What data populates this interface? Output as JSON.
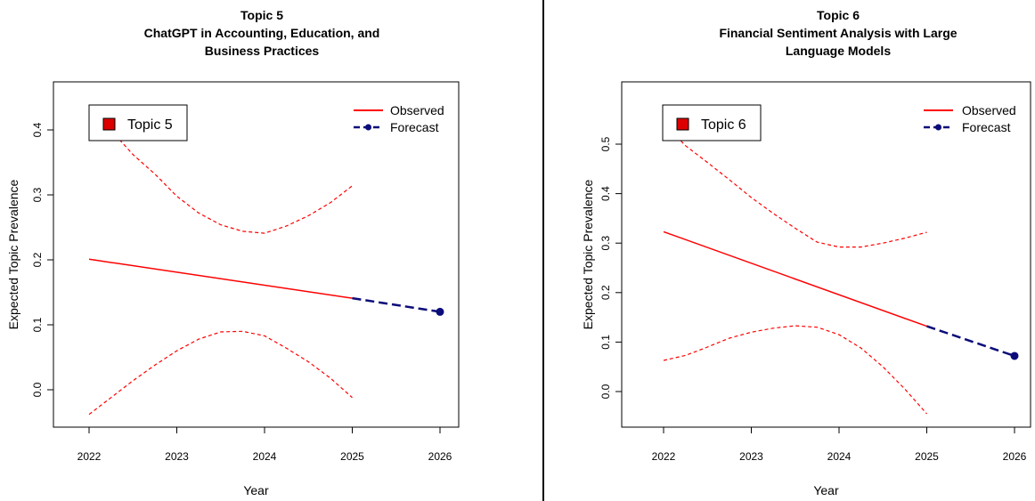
{
  "chart_data": [
    {
      "type": "line",
      "title": [
        "Topic 5",
        "ChatGPT in Accounting, Education, and",
        "Business Practices"
      ],
      "xlabel": "Year",
      "ylabel": "Expected Topic Prevalence",
      "xlim": [
        2022,
        2026
      ],
      "ylim": [
        -0.05,
        0.45
      ],
      "x_ticks": [
        2022,
        2023,
        2024,
        2025,
        2026
      ],
      "y_ticks": [
        0.0,
        0.1,
        0.2,
        0.3,
        0.4
      ],
      "grid": false,
      "box_label": "Topic 5",
      "box_color": "#dd0000",
      "legend": {
        "position": "top-right",
        "entries": [
          "Observed",
          "Forecast"
        ]
      },
      "series": [
        {
          "name": "Observed",
          "color": "#ff0000",
          "style": "solid",
          "x": [
            2022,
            2025
          ],
          "y": [
            0.201,
            0.141
          ]
        },
        {
          "name": "Upper bound",
          "color": "#ff0000",
          "style": "dashed",
          "x": [
            2022.3,
            2022.5,
            2022.75,
            2023,
            2023.25,
            2023.5,
            2023.75,
            2024,
            2024.25,
            2024.5,
            2024.75,
            2025
          ],
          "y": [
            0.392,
            0.362,
            0.332,
            0.298,
            0.272,
            0.254,
            0.244,
            0.241,
            0.252,
            0.268,
            0.288,
            0.314
          ]
        },
        {
          "name": "Lower bound",
          "color": "#ff0000",
          "style": "dashed",
          "x": [
            2022,
            2022.25,
            2022.5,
            2022.75,
            2023,
            2023.25,
            2023.5,
            2023.75,
            2024,
            2024.25,
            2024.5,
            2024.75,
            2025
          ],
          "y": [
            -0.038,
            -0.012,
            0.014,
            0.038,
            0.06,
            0.078,
            0.089,
            0.09,
            0.083,
            0.064,
            0.043,
            0.018,
            -0.012
          ]
        },
        {
          "name": "Forecast",
          "color": "#0b0b7a",
          "style": "dashed",
          "x": [
            2025,
            2026
          ],
          "y": [
            0.141,
            0.12
          ],
          "end_marker": true
        }
      ]
    },
    {
      "type": "line",
      "title": [
        "Topic 6",
        "Financial Sentiment Analysis with Large",
        "Language Models"
      ],
      "xlabel": "Year",
      "ylabel": "Expected Topic Prevalence",
      "xlim": [
        2022,
        2026
      ],
      "ylim": [
        -0.06,
        0.58
      ],
      "x_ticks": [
        2022,
        2023,
        2024,
        2025,
        2026
      ],
      "y_ticks": [
        0.0,
        0.1,
        0.2,
        0.3,
        0.4,
        0.5
      ],
      "grid": false,
      "box_label": "Topic 6",
      "box_color": "#dd0000",
      "legend": {
        "position": "top-right",
        "entries": [
          "Observed",
          "Forecast"
        ]
      },
      "series": [
        {
          "name": "Observed",
          "color": "#ff0000",
          "style": "solid",
          "x": [
            2022,
            2025
          ],
          "y": [
            0.323,
            0.132
          ]
        },
        {
          "name": "Upper bound",
          "color": "#ff0000",
          "style": "dashed",
          "x": [
            2022.1,
            2022.25,
            2022.5,
            2022.75,
            2023,
            2023.25,
            2023.5,
            2023.75,
            2024,
            2024.25,
            2024.5,
            2024.75,
            2025
          ],
          "y": [
            0.525,
            0.497,
            0.463,
            0.428,
            0.392,
            0.36,
            0.33,
            0.302,
            0.292,
            0.292,
            0.3,
            0.31,
            0.322
          ]
        },
        {
          "name": "Lower bound",
          "color": "#ff0000",
          "style": "dashed",
          "x": [
            2022,
            2022.25,
            2022.5,
            2022.75,
            2023,
            2023.25,
            2023.5,
            2023.75,
            2024,
            2024.25,
            2024.5,
            2024.75,
            2025
          ],
          "y": [
            0.063,
            0.073,
            0.09,
            0.108,
            0.12,
            0.128,
            0.133,
            0.13,
            0.115,
            0.088,
            0.05,
            0.005,
            -0.045
          ]
        },
        {
          "name": "Forecast",
          "color": "#0b0b7a",
          "style": "dashed",
          "x": [
            2025,
            2026
          ],
          "y": [
            0.132,
            0.072
          ],
          "end_marker": true
        }
      ]
    }
  ]
}
